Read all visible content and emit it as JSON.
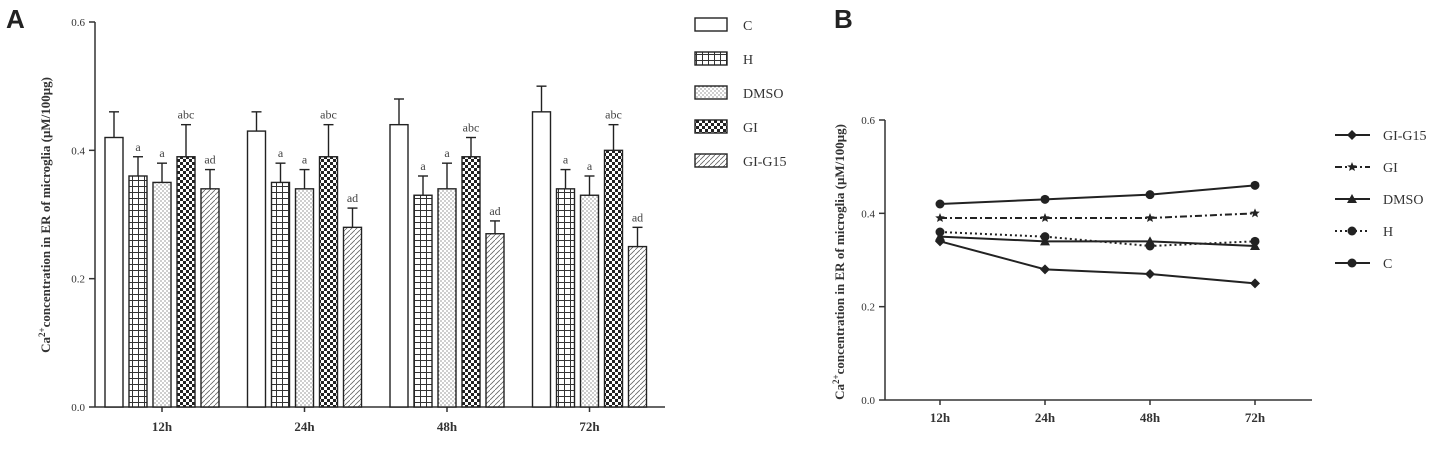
{
  "panels": {
    "a_label": "A",
    "b_label": "B"
  },
  "chart_data": [
    {
      "type": "bar",
      "panel": "A",
      "categories": [
        "12h",
        "24h",
        "48h",
        "72h"
      ],
      "ylabel_base": "Ca",
      "ylabel_sup": "2+",
      "ylabel_rest": "concentration in ER of microglia (μM/100μg)",
      "ylim": [
        0,
        0.6
      ],
      "yticks": [
        "0.0",
        "0.2",
        "0.4",
        "0.6"
      ],
      "ytick_values": [
        0,
        0.2,
        0.4,
        0.6
      ],
      "legend_position": "right",
      "series": [
        {
          "name": "C",
          "pattern": "white",
          "values": [
            0.42,
            0.43,
            0.44,
            0.46
          ],
          "errors": [
            0.04,
            0.03,
            0.04,
            0.04
          ],
          "annotations": [
            "",
            "",
            "",
            ""
          ]
        },
        {
          "name": "H",
          "pattern": "grid",
          "values": [
            0.36,
            0.35,
            0.33,
            0.34
          ],
          "errors": [
            0.03,
            0.03,
            0.03,
            0.03
          ],
          "annotations": [
            "a",
            "a",
            "a",
            "a"
          ]
        },
        {
          "name": "DMSO",
          "pattern": "dots",
          "values": [
            0.35,
            0.34,
            0.34,
            0.33
          ],
          "errors": [
            0.03,
            0.03,
            0.04,
            0.03
          ],
          "annotations": [
            "a",
            "a",
            "a",
            "a"
          ]
        },
        {
          "name": "GI",
          "pattern": "checker",
          "values": [
            0.39,
            0.39,
            0.39,
            0.4
          ],
          "errors": [
            0.05,
            0.05,
            0.03,
            0.04
          ],
          "annotations": [
            "abc",
            "abc",
            "abc",
            "abc"
          ]
        },
        {
          "name": "GI-G15",
          "pattern": "hatch",
          "values": [
            0.34,
            0.28,
            0.27,
            0.25
          ],
          "errors": [
            0.03,
            0.03,
            0.02,
            0.03
          ],
          "annotations": [
            "ad",
            "ad",
            "ad",
            "ad"
          ]
        }
      ]
    },
    {
      "type": "line",
      "panel": "B",
      "x": [
        "12h",
        "24h",
        "48h",
        "72h"
      ],
      "ylabel_base": "Ca",
      "ylabel_sup": "2+",
      "ylabel_rest": "concentration in ER of microglia (μM/100μg)",
      "ylim": [
        0,
        0.6
      ],
      "yticks": [
        "0.0",
        "0.2",
        "0.4",
        "0.6"
      ],
      "ytick_values": [
        0,
        0.2,
        0.4,
        0.6
      ],
      "legend_position": "right",
      "series": [
        {
          "name": "GI-G15",
          "marker": "diamond",
          "dash": "solid",
          "values": [
            0.34,
            0.28,
            0.27,
            0.25
          ]
        },
        {
          "name": "GI",
          "marker": "star",
          "dash": "dashdot",
          "values": [
            0.39,
            0.39,
            0.39,
            0.4
          ]
        },
        {
          "name": "DMSO",
          "marker": "triangle",
          "dash": "solid",
          "values": [
            0.35,
            0.34,
            0.34,
            0.33
          ]
        },
        {
          "name": "H",
          "marker": "circle",
          "dash": "dotted",
          "values": [
            0.36,
            0.35,
            0.33,
            0.34
          ]
        },
        {
          "name": "C",
          "marker": "circle",
          "dash": "solid",
          "values": [
            0.42,
            0.43,
            0.44,
            0.46
          ]
        }
      ]
    }
  ]
}
